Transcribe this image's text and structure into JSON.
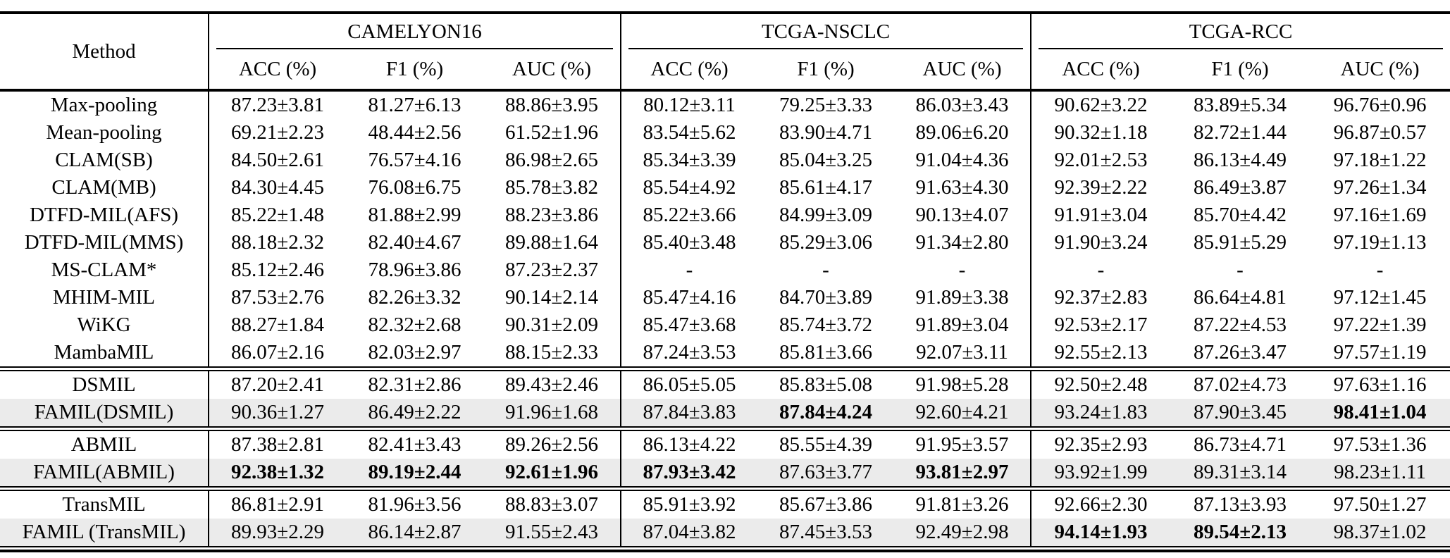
{
  "table": {
    "method_header": "Method",
    "groups": [
      {
        "name": "CAMELYON16",
        "metrics": [
          "ACC (%)",
          "F1 (%)",
          "AUC (%)"
        ]
      },
      {
        "name": "TCGA-NSCLC",
        "metrics": [
          "ACC (%)",
          "F1 (%)",
          "AUC (%)"
        ]
      },
      {
        "name": "TCGA-RCC",
        "metrics": [
          "ACC (%)",
          "F1 (%)",
          "AUC (%)"
        ]
      }
    ],
    "highlight_color": "#ebebeb",
    "missing_value": "-",
    "sections": [
      {
        "rows": [
          {
            "method": "Max-pooling",
            "highlight": false,
            "bold": [],
            "values": [
              "87.23±3.81",
              "81.27±6.13",
              "88.86±3.95",
              "80.12±3.11",
              "79.25±3.33",
              "86.03±3.43",
              "90.62±3.22",
              "83.89±5.34",
              "96.76±0.96"
            ]
          },
          {
            "method": "Mean-pooling",
            "highlight": false,
            "bold": [],
            "values": [
              "69.21±2.23",
              "48.44±2.56",
              "61.52±1.96",
              "83.54±5.62",
              "83.90±4.71",
              "89.06±6.20",
              "90.32±1.18",
              "82.72±1.44",
              "96.87±0.57"
            ]
          },
          {
            "method": "CLAM(SB)",
            "highlight": false,
            "bold": [],
            "values": [
              "84.50±2.61",
              "76.57±4.16",
              "86.98±2.65",
              "85.34±3.39",
              "85.04±3.25",
              "91.04±4.36",
              "92.01±2.53",
              "86.13±4.49",
              "97.18±1.22"
            ]
          },
          {
            "method": "CLAM(MB)",
            "highlight": false,
            "bold": [],
            "values": [
              "84.30±4.45",
              "76.08±6.75",
              "85.78±3.82",
              "85.54±4.92",
              "85.61±4.17",
              "91.63±4.30",
              "92.39±2.22",
              "86.49±3.87",
              "97.26±1.34"
            ]
          },
          {
            "method": "DTFD-MIL(AFS)",
            "highlight": false,
            "bold": [],
            "values": [
              "85.22±1.48",
              "81.88±2.99",
              "88.23±3.86",
              "85.22±3.66",
              "84.99±3.09",
              "90.13±4.07",
              "91.91±3.04",
              "85.70±4.42",
              "97.16±1.69"
            ]
          },
          {
            "method": "DTFD-MIL(MMS)",
            "highlight": false,
            "bold": [],
            "values": [
              "88.18±2.32",
              "82.40±4.67",
              "89.88±1.64",
              "85.40±3.48",
              "85.29±3.06",
              "91.34±2.80",
              "91.90±3.24",
              "85.91±5.29",
              "97.19±1.13"
            ]
          },
          {
            "method": "MS-CLAM*",
            "highlight": false,
            "bold": [],
            "values": [
              "85.12±2.46",
              "78.96±3.86",
              "87.23±2.37",
              "-",
              "-",
              "-",
              "-",
              "-",
              "-"
            ]
          },
          {
            "method": "MHIM-MIL",
            "highlight": false,
            "bold": [],
            "values": [
              "87.53±2.76",
              "82.26±3.32",
              "90.14±2.14",
              "85.47±4.16",
              "84.70±3.89",
              "91.89±3.38",
              "92.37±2.83",
              "86.64±4.81",
              "97.12±1.45"
            ]
          },
          {
            "method": "WiKG",
            "highlight": false,
            "bold": [],
            "values": [
              "88.27±1.84",
              "82.32±2.68",
              "90.31±2.09",
              "85.47±3.68",
              "85.74±3.72",
              "91.89±3.04",
              "92.53±2.17",
              "87.22±4.53",
              "97.22±1.39"
            ]
          },
          {
            "method": "MambaMIL",
            "highlight": false,
            "bold": [],
            "values": [
              "86.07±2.16",
              "82.03±2.97",
              "88.15±2.33",
              "87.24±3.53",
              "85.81±3.66",
              "92.07±3.11",
              "92.55±2.13",
              "87.26±3.47",
              "97.57±1.19"
            ]
          }
        ]
      },
      {
        "rows": [
          {
            "method": "DSMIL",
            "highlight": false,
            "bold": [],
            "values": [
              "87.20±2.41",
              "82.31±2.86",
              "89.43±2.46",
              "86.05±5.05",
              "85.83±5.08",
              "91.98±5.28",
              "92.50±2.48",
              "87.02±4.73",
              "97.63±1.16"
            ]
          },
          {
            "method": "FAMIL(DSMIL)",
            "highlight": true,
            "bold": [
              4,
              8
            ],
            "values": [
              "90.36±1.27",
              "86.49±2.22",
              "91.96±1.68",
              "87.84±3.83",
              "87.84±4.24",
              "92.60±4.21",
              "93.24±1.83",
              "87.90±3.45",
              "98.41±1.04"
            ]
          }
        ]
      },
      {
        "rows": [
          {
            "method": "ABMIL",
            "highlight": false,
            "bold": [],
            "values": [
              "87.38±2.81",
              "82.41±3.43",
              "89.26±2.56",
              "86.13±4.22",
              "85.55±4.39",
              "91.95±3.57",
              "92.35±2.93",
              "86.73±4.71",
              "97.53±1.36"
            ]
          },
          {
            "method": "FAMIL(ABMIL)",
            "highlight": true,
            "bold": [
              0,
              1,
              2,
              3,
              5
            ],
            "values": [
              "92.38±1.32",
              "89.19±2.44",
              "92.61±1.96",
              "87.93±3.42",
              "87.63±3.77",
              "93.81±2.97",
              "93.92±1.99",
              "89.31±3.14",
              "98.23±1.11"
            ]
          }
        ]
      },
      {
        "rows": [
          {
            "method": "TransMIL",
            "highlight": false,
            "bold": [],
            "values": [
              "86.81±2.91",
              "81.96±3.56",
              "88.83±3.07",
              "85.91±3.92",
              "85.67±3.86",
              "91.81±3.26",
              "92.66±2.30",
              "87.13±3.93",
              "97.50±1.27"
            ]
          },
          {
            "method": "FAMIL (TransMIL)",
            "highlight": true,
            "bold": [
              6,
              7
            ],
            "values": [
              "89.93±2.29",
              "86.14±2.87",
              "91.55±2.43",
              "87.04±3.82",
              "87.45±3.53",
              "92.49±2.98",
              "94.14±1.93",
              "89.54±2.13",
              "98.37±1.02"
            ]
          }
        ]
      }
    ]
  }
}
